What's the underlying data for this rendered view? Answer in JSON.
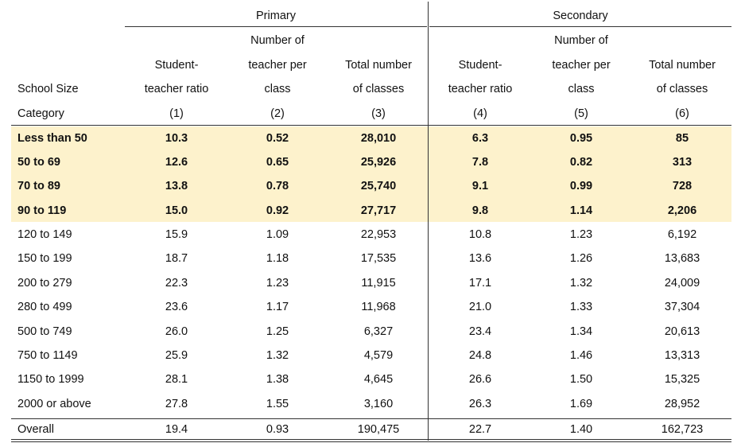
{
  "header": {
    "group_left": "Primary",
    "group_right": "Secondary",
    "category_line1": "School Size",
    "category_line2": "Category",
    "columns": [
      {
        "lines": [
          "",
          "Student-",
          "teacher ratio",
          "(1)"
        ]
      },
      {
        "lines": [
          "Number of",
          "teacher per",
          "class",
          "(2)"
        ]
      },
      {
        "lines": [
          "",
          "Total number",
          "of classes",
          "(3)"
        ]
      },
      {
        "lines": [
          "",
          "Student-",
          "teacher ratio",
          "(4)"
        ]
      },
      {
        "lines": [
          "Number of",
          "teacher per",
          "class",
          "(5)"
        ]
      },
      {
        "lines": [
          "",
          "Total number",
          "of classes",
          "(6)"
        ]
      }
    ]
  },
  "highlight_color": "#fdf2cc",
  "rows": [
    {
      "cat": "Less than 50",
      "v": [
        "10.3",
        "0.52",
        "28,010",
        "6.3",
        "0.95",
        "85"
      ],
      "highlight": true
    },
    {
      "cat": "50 to 69",
      "v": [
        "12.6",
        "0.65",
        "25,926",
        "7.8",
        "0.82",
        "313"
      ],
      "highlight": true
    },
    {
      "cat": "70 to 89",
      "v": [
        "13.8",
        "0.78",
        "25,740",
        "9.1",
        "0.99",
        "728"
      ],
      "highlight": true
    },
    {
      "cat": "90 to 119",
      "v": [
        "15.0",
        "0.92",
        "27,717",
        "9.8",
        "1.14",
        "2,206"
      ],
      "highlight": true
    },
    {
      "cat": "120 to 149",
      "v": [
        "15.9",
        "1.09",
        "22,953",
        "10.8",
        "1.23",
        "6,192"
      ],
      "highlight": false
    },
    {
      "cat": "150 to 199",
      "v": [
        "18.7",
        "1.18",
        "17,535",
        "13.6",
        "1.26",
        "13,683"
      ],
      "highlight": false
    },
    {
      "cat": "200 to 279",
      "v": [
        "22.3",
        "1.23",
        "11,915",
        "17.1",
        "1.32",
        "24,009"
      ],
      "highlight": false
    },
    {
      "cat": "280 to 499",
      "v": [
        "23.6",
        "1.17",
        "11,968",
        "21.0",
        "1.33",
        "37,304"
      ],
      "highlight": false
    },
    {
      "cat": "500 to 749",
      "v": [
        "26.0",
        "1.25",
        "6,327",
        "23.4",
        "1.34",
        "20,613"
      ],
      "highlight": false
    },
    {
      "cat": "750 to 1149",
      "v": [
        "25.9",
        "1.32",
        "4,579",
        "24.8",
        "1.46",
        "13,313"
      ],
      "highlight": false
    },
    {
      "cat": "1150 to 1999",
      "v": [
        "28.1",
        "1.38",
        "4,645",
        "26.6",
        "1.50",
        "15,325"
      ],
      "highlight": false
    },
    {
      "cat": "2000 or above",
      "v": [
        "27.8",
        "1.55",
        "3,160",
        "26.3",
        "1.69",
        "28,952"
      ],
      "highlight": false
    }
  ],
  "overall": {
    "cat": "Overall",
    "v": [
      "19.4",
      "0.93",
      "190,475",
      "22.7",
      "1.40",
      "162,723"
    ]
  }
}
